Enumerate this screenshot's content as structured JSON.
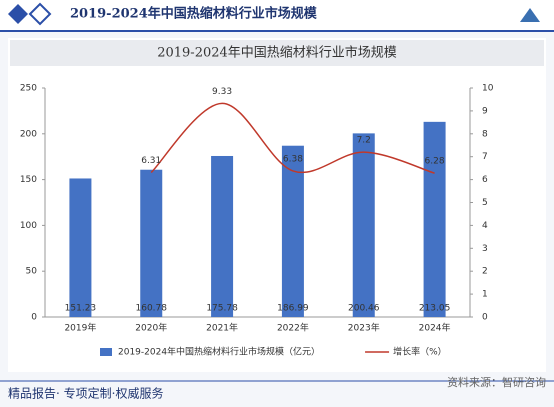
{
  "header": {
    "title": "2019-2024年中国热缩材料行业市场规模"
  },
  "chart_data": {
    "type": "bar-line",
    "title": "2019-2024年中国热缩材料行业市场规模",
    "categories": [
      "2019年",
      "2020年",
      "2021年",
      "2022年",
      "2023年",
      "2024年"
    ],
    "series": [
      {
        "name": "2019-2024年中国热缩材料行业市场规模（亿元）",
        "type": "bar",
        "color": "#4472c4",
        "values": [
          151.23,
          160.78,
          175.78,
          186.99,
          200.46,
          213.05
        ]
      },
      {
        "name": "增长率（%）",
        "type": "line",
        "axis": "y2",
        "color": "#c0392b",
        "values": [
          null,
          6.31,
          9.33,
          6.38,
          7.2,
          6.28
        ]
      }
    ],
    "ylim": [
      0,
      250
    ],
    "yticks": [
      0,
      50,
      100,
      150,
      200,
      250
    ],
    "y2lim": [
      0,
      10
    ],
    "y2ticks": [
      0,
      1,
      2,
      3,
      4,
      5,
      6,
      7,
      8,
      9,
      10
    ],
    "legend": "bottom"
  },
  "footer": {
    "slogan": "精品报告· 专项定制·权威服务",
    "source": "资料来源：智研咨询"
  }
}
